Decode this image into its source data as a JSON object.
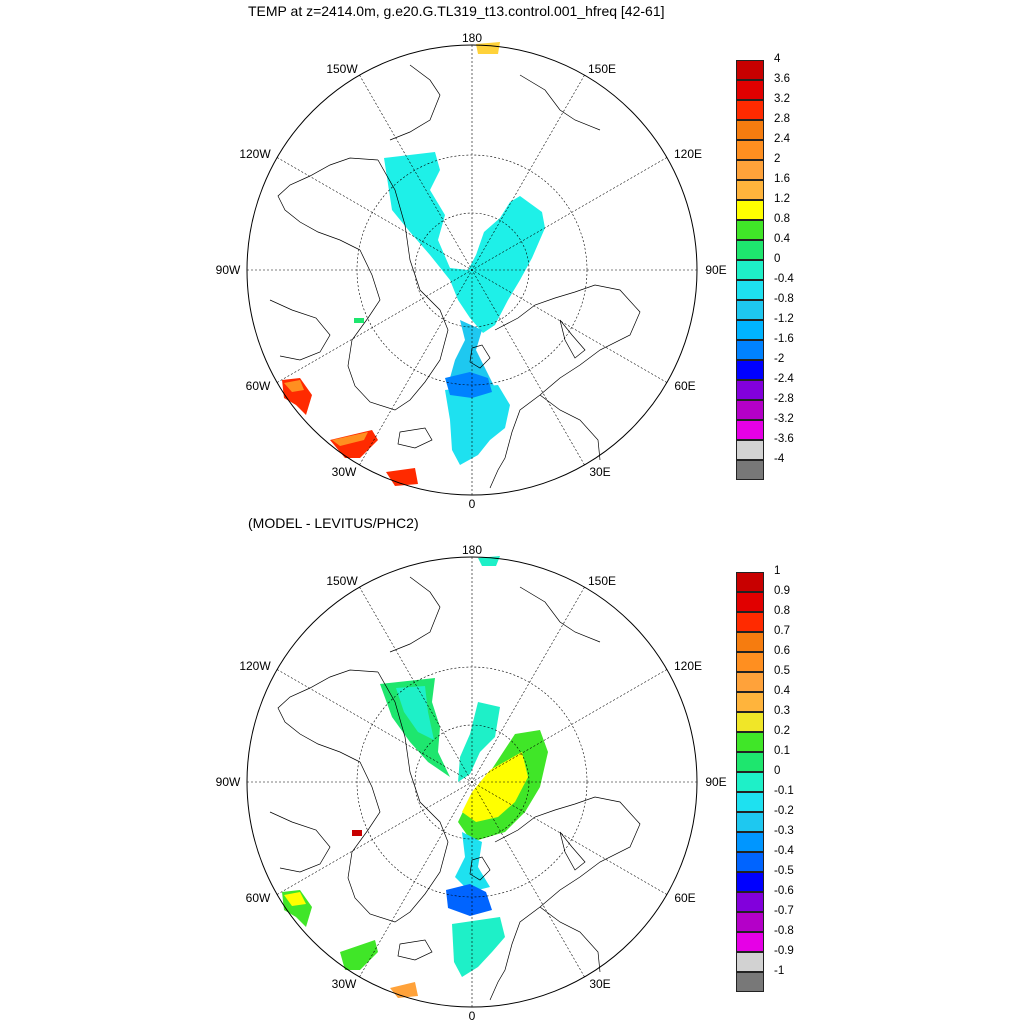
{
  "panels": [
    {
      "title": "TEMP at z=2414.0m, g.e20.G.TL319_t13.control.001_hfreq [42-61]",
      "lon_labels": {
        "n180": "180",
        "w150": "150W",
        "e150": "150E",
        "w120": "120W",
        "e120": "120E",
        "w90": "90W",
        "e90": "90E",
        "w60": "60W",
        "e60": "60E",
        "w30": "30W",
        "e30": "30E",
        "s0": "0"
      },
      "colorbar": {
        "labels": [
          "4",
          "3.6",
          "3.2",
          "2.8",
          "2.4",
          "2",
          "1.6",
          "1.2",
          "0.8",
          "0.4",
          "0",
          "-0.4",
          "-0.8",
          "-1.2",
          "-1.6",
          "-2",
          "-2.4",
          "-2.8",
          "-3.2",
          "-3.6",
          "-4"
        ],
        "colors": [
          "#c80000",
          "#e10000",
          "#ff2a00",
          "#f67c0f",
          "#ff8f20",
          "#ffa23a",
          "#ffb43c",
          "#ffff00",
          "#40e628",
          "#1ee66e",
          "#1ef0c8",
          "#1ee1f0",
          "#1ec8f0",
          "#00b4ff",
          "#0082ff",
          "#0000ff",
          "#8200dc",
          "#b400c8",
          "#e600e6",
          "#d2d2d2",
          "#787878"
        ]
      }
    },
    {
      "title": "(MODEL - LEVITUS/PHC2)",
      "lon_labels": {
        "n180": "180",
        "w150": "150W",
        "e150": "150E",
        "w120": "120W",
        "e120": "120E",
        "w90": "90W",
        "e90": "90E",
        "w60": "60W",
        "e60": "60E",
        "w30": "30W",
        "e30": "30E",
        "s0": "0"
      },
      "colorbar": {
        "labels": [
          "1",
          "0.9",
          "0.8",
          "0.7",
          "0.6",
          "0.5",
          "0.4",
          "0.3",
          "0.2",
          "0.1",
          "0",
          "-0.1",
          "-0.2",
          "-0.3",
          "-0.4",
          "-0.5",
          "-0.6",
          "-0.7",
          "-0.8",
          "-0.9",
          "-1"
        ],
        "colors": [
          "#c80000",
          "#e10000",
          "#ff2a00",
          "#f67c0f",
          "#ff8f20",
          "#ffa23a",
          "#ffb43c",
          "#f0e628",
          "#40e628",
          "#1ee66e",
          "#1ef0c8",
          "#1ee1f0",
          "#1ec8f0",
          "#0096ff",
          "#0064ff",
          "#0000ff",
          "#8200dc",
          "#b400c8",
          "#e600e6",
          "#d2d2d2",
          "#787878"
        ]
      }
    }
  ]
}
